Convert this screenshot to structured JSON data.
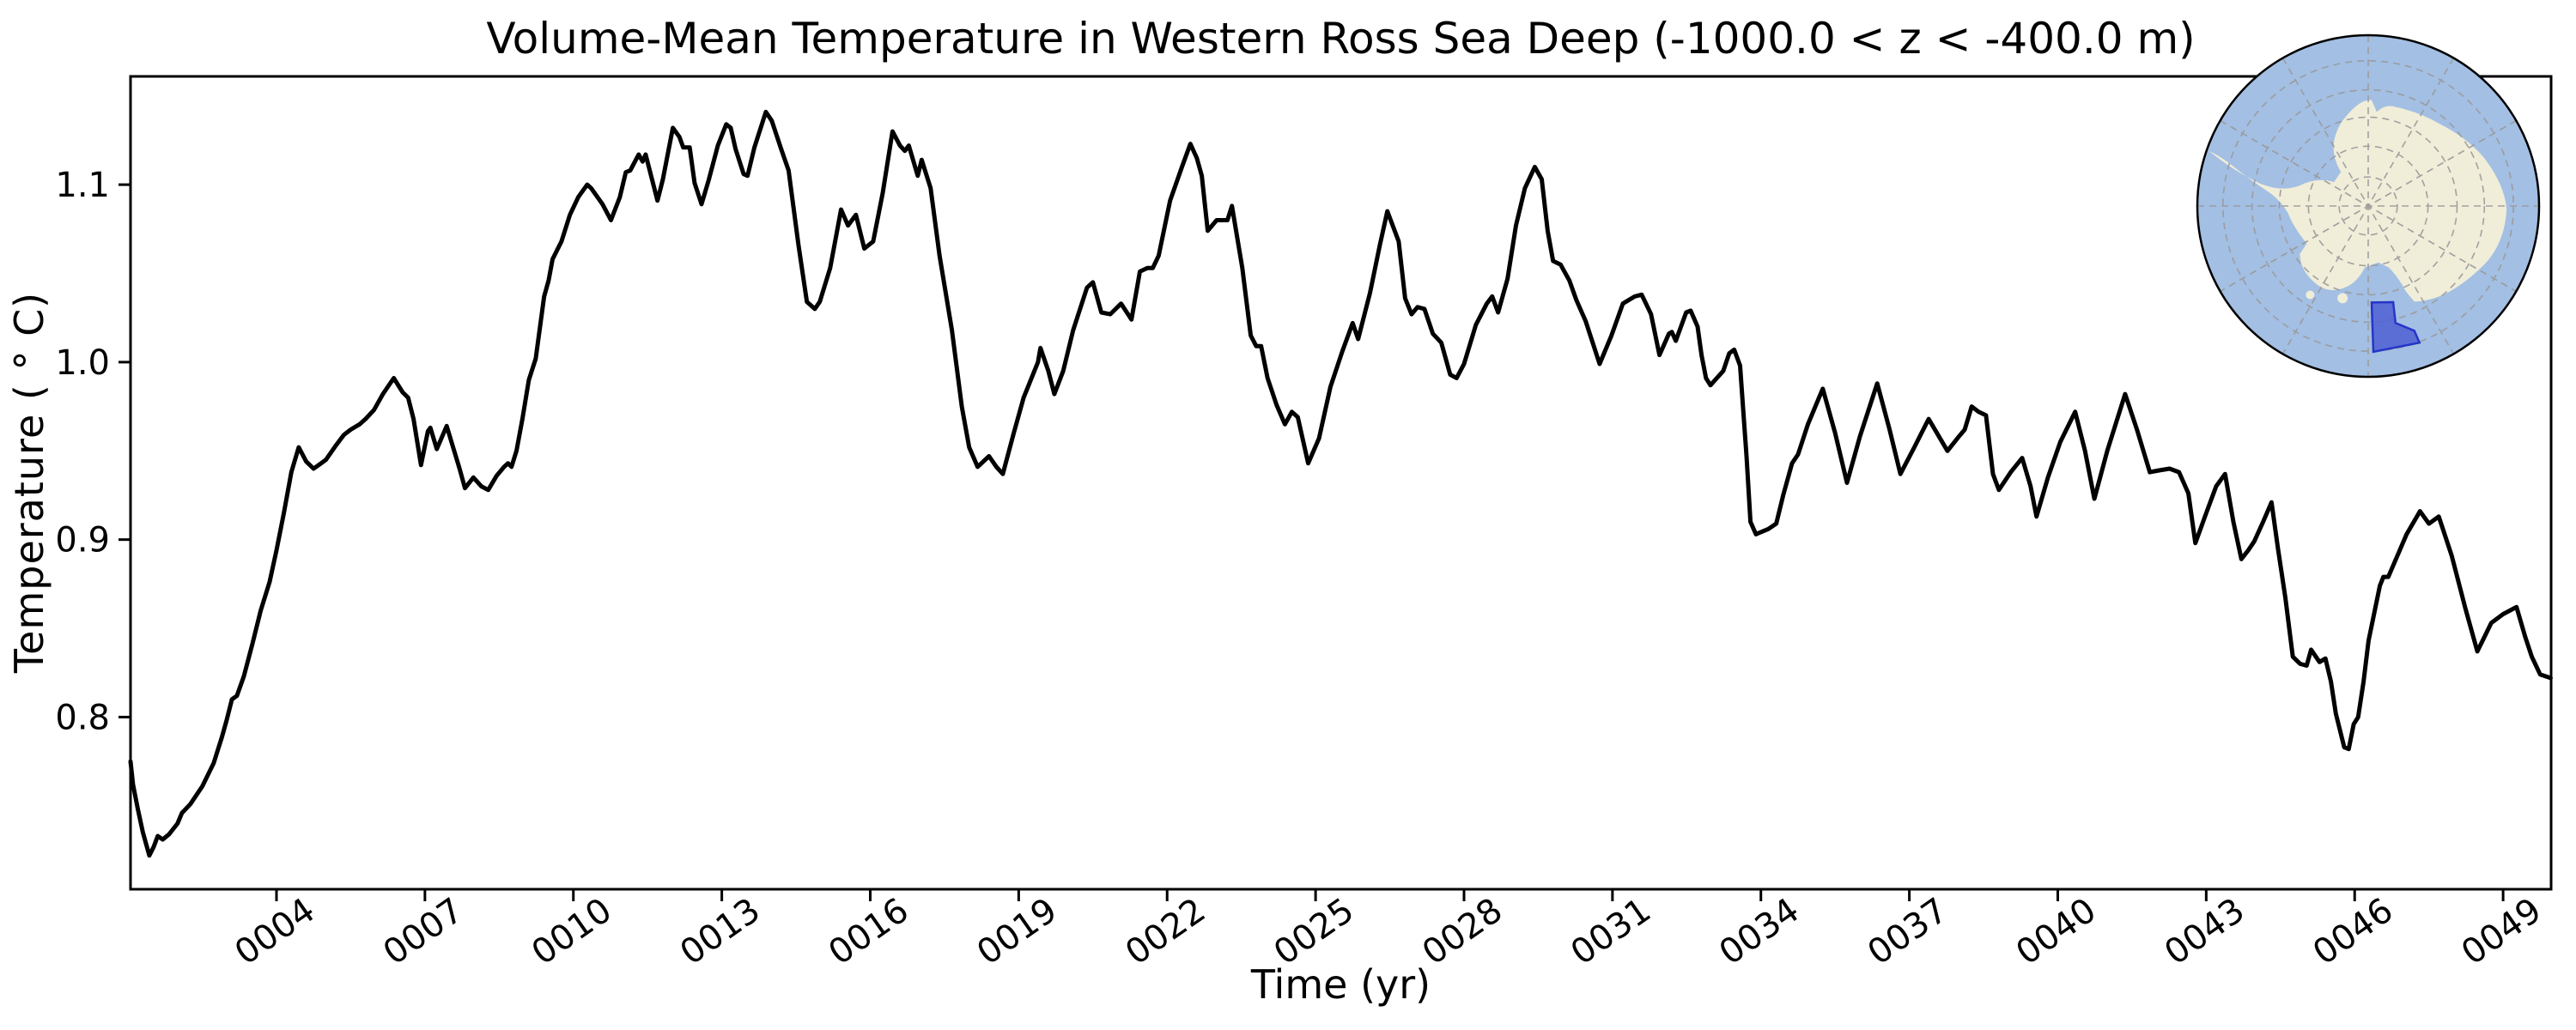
{
  "figure": {
    "background": "#ffffff",
    "text_color": "#000000"
  },
  "chart_data": {
    "type": "line",
    "title": "Volume-Mean Temperature in Western Ross Sea Deep (-1000.0 < z < -400.0 m)",
    "xlabel": "Time (yr)",
    "ylabel": "Temperature ( ° C)",
    "xlim": [
      1.05,
      49.97
    ],
    "ylim": [
      0.703,
      1.161
    ],
    "grid": false,
    "legend": "none",
    "x_ticks": [
      4,
      7,
      10,
      13,
      16,
      19,
      22,
      25,
      28,
      31,
      34,
      37,
      40,
      43,
      46,
      49
    ],
    "x_tick_labels": [
      "0004",
      "0007",
      "0010",
      "0013",
      "0016",
      "0019",
      "0022",
      "0025",
      "0028",
      "0031",
      "0034",
      "0037",
      "0040",
      "0043",
      "0046",
      "0049"
    ],
    "x_tick_rotation": 35,
    "y_ticks": [
      0.8,
      0.9,
      1.0,
      1.1
    ],
    "y_tick_labels": [
      "0.8",
      "0.9",
      "1.0",
      "1.1"
    ],
    "line_color": "#000000",
    "line_width": 5,
    "series": [
      {
        "name": "volume-mean temperature",
        "x": [
          1.05,
          1.1,
          1.2,
          1.3,
          1.43,
          1.52,
          1.6,
          1.7,
          1.83,
          2.0,
          2.09,
          2.26,
          2.5,
          2.73,
          2.9,
          2.99,
          3.1,
          3.2,
          3.34,
          3.51,
          3.68,
          3.86,
          4.0,
          4.15,
          4.3,
          4.45,
          4.6,
          4.75,
          4.9,
          5.0,
          5.2,
          5.36,
          5.5,
          5.68,
          5.8,
          5.97,
          6.15,
          6.37,
          6.55,
          6.66,
          6.77,
          6.92,
          7.06,
          7.11,
          7.24,
          7.44,
          7.58,
          7.7,
          7.81,
          7.98,
          8.14,
          8.28,
          8.45,
          8.6,
          8.68,
          8.75,
          8.85,
          8.97,
          9.1,
          9.24,
          9.41,
          9.5,
          9.58,
          9.67,
          9.76,
          9.93,
          10.1,
          10.28,
          10.36,
          10.59,
          10.76,
          10.94,
          11.06,
          11.15,
          11.32,
          11.4,
          11.46,
          11.58,
          11.7,
          11.81,
          12.01,
          12.14,
          12.22,
          12.35,
          12.45,
          12.59,
          12.74,
          12.92,
          13.09,
          13.18,
          13.28,
          13.44,
          13.52,
          13.66,
          13.89,
          14.01,
          14.2,
          14.35,
          14.55,
          14.72,
          14.8,
          14.88,
          14.98,
          15.19,
          15.41,
          15.55,
          15.71,
          15.88,
          16.06,
          16.25,
          16.45,
          16.6,
          16.7,
          16.78,
          16.96,
          17.04,
          17.22,
          17.4,
          17.65,
          17.85,
          18.0,
          18.17,
          18.4,
          18.55,
          18.68,
          18.9,
          19.1,
          19.39,
          19.44,
          19.6,
          19.72,
          19.9,
          20.1,
          20.38,
          20.5,
          20.67,
          20.85,
          21.07,
          21.28,
          21.45,
          21.6,
          21.71,
          21.83,
          22.06,
          22.3,
          22.47,
          22.6,
          22.7,
          22.82,
          23.0,
          23.22,
          23.31,
          23.52,
          23.69,
          23.8,
          23.9,
          24.03,
          24.21,
          24.38,
          24.52,
          24.64,
          24.85,
          25.07,
          25.3,
          25.54,
          25.75,
          25.86,
          26.1,
          26.3,
          26.45,
          26.68,
          26.81,
          26.94,
          27.06,
          27.2,
          27.37,
          27.54,
          27.72,
          27.85,
          28.0,
          28.24,
          28.46,
          28.57,
          28.69,
          28.88,
          29.05,
          29.23,
          29.43,
          29.57,
          29.69,
          29.8,
          29.95,
          30.13,
          30.27,
          30.46,
          30.74,
          30.98,
          31.21,
          31.45,
          31.59,
          31.78,
          31.95,
          32.14,
          32.2,
          32.28,
          32.49,
          32.58,
          32.72,
          32.8,
          32.89,
          32.98,
          33.11,
          33.24,
          33.36,
          33.46,
          33.58,
          33.64,
          33.71,
          33.79,
          33.9,
          33.98,
          34.15,
          34.31,
          34.45,
          34.63,
          34.75,
          34.95,
          35.25,
          35.5,
          35.74,
          36.0,
          36.35,
          36.6,
          36.82,
          37.1,
          37.39,
          37.6,
          37.77,
          38.0,
          38.12,
          38.26,
          38.4,
          38.55,
          38.69,
          38.81,
          39.05,
          39.28,
          39.45,
          39.57,
          39.8,
          40.05,
          40.35,
          40.55,
          40.74,
          41.0,
          41.36,
          41.6,
          41.86,
          42.05,
          42.26,
          42.45,
          42.64,
          42.78,
          43.0,
          43.2,
          43.38,
          43.55,
          43.71,
          43.85,
          43.97,
          44.15,
          44.32,
          44.45,
          44.6,
          44.75,
          44.9,
          45.03,
          45.12,
          45.29,
          45.41,
          45.52,
          45.62,
          45.79,
          45.88,
          45.98,
          46.07,
          46.18,
          46.28,
          46.51,
          46.58,
          46.68,
          46.85,
          47.05,
          47.32,
          47.5,
          47.7,
          47.96,
          48.24,
          48.48,
          48.62,
          48.76,
          49.0,
          49.27,
          49.45,
          49.58,
          49.75,
          49.96
        ],
        "y": [
          0.775,
          0.762,
          0.748,
          0.735,
          0.722,
          0.727,
          0.733,
          0.731,
          0.734,
          0.74,
          0.746,
          0.751,
          0.761,
          0.774,
          0.789,
          0.798,
          0.81,
          0.812,
          0.823,
          0.841,
          0.86,
          0.876,
          0.894,
          0.915,
          0.938,
          0.952,
          0.944,
          0.94,
          0.943,
          0.945,
          0.953,
          0.959,
          0.962,
          0.965,
          0.968,
          0.973,
          0.982,
          0.991,
          0.983,
          0.98,
          0.968,
          0.942,
          0.961,
          0.963,
          0.951,
          0.964,
          0.951,
          0.94,
          0.929,
          0.935,
          0.93,
          0.928,
          0.936,
          0.941,
          0.943,
          0.941,
          0.95,
          0.968,
          0.99,
          1.002,
          1.037,
          1.046,
          1.058,
          1.063,
          1.068,
          1.083,
          1.093,
          1.1,
          1.098,
          1.089,
          1.08,
          1.093,
          1.107,
          1.108,
          1.117,
          1.113,
          1.117,
          1.104,
          1.091,
          1.103,
          1.132,
          1.127,
          1.121,
          1.121,
          1.101,
          1.089,
          1.103,
          1.122,
          1.134,
          1.132,
          1.12,
          1.106,
          1.105,
          1.121,
          1.141,
          1.136,
          1.12,
          1.108,
          1.066,
          1.034,
          1.032,
          1.03,
          1.034,
          1.053,
          1.086,
          1.077,
          1.083,
          1.064,
          1.068,
          1.095,
          1.13,
          1.122,
          1.119,
          1.122,
          1.105,
          1.114,
          1.098,
          1.06,
          1.018,
          0.975,
          0.952,
          0.941,
          0.947,
          0.941,
          0.937,
          0.96,
          0.98,
          1.0,
          1.008,
          0.995,
          0.982,
          0.995,
          1.018,
          1.042,
          1.045,
          1.028,
          1.027,
          1.033,
          1.024,
          1.051,
          1.053,
          1.053,
          1.06,
          1.091,
          1.11,
          1.123,
          1.115,
          1.105,
          1.074,
          1.08,
          1.08,
          1.088,
          1.053,
          1.015,
          1.009,
          1.009,
          0.991,
          0.976,
          0.965,
          0.972,
          0.969,
          0.943,
          0.957,
          0.986,
          1.006,
          1.022,
          1.013,
          1.039,
          1.066,
          1.085,
          1.068,
          1.036,
          1.027,
          1.031,
          1.03,
          1.016,
          1.011,
          0.993,
          0.991,
          0.999,
          1.021,
          1.033,
          1.037,
          1.028,
          1.047,
          1.077,
          1.098,
          1.11,
          1.103,
          1.074,
          1.057,
          1.055,
          1.046,
          1.035,
          1.023,
          0.999,
          1.015,
          1.033,
          1.037,
          1.038,
          1.027,
          1.004,
          1.016,
          1.017,
          1.012,
          1.028,
          1.029,
          1.02,
          1.004,
          0.991,
          0.987,
          0.991,
          0.995,
          1.005,
          1.007,
          0.998,
          0.974,
          0.947,
          0.91,
          0.903,
          0.904,
          0.906,
          0.909,
          0.925,
          0.943,
          0.948,
          0.965,
          0.985,
          0.96,
          0.932,
          0.958,
          0.988,
          0.962,
          0.937,
          0.952,
          0.968,
          0.958,
          0.95,
          0.958,
          0.962,
          0.975,
          0.972,
          0.97,
          0.937,
          0.928,
          0.938,
          0.946,
          0.93,
          0.913,
          0.935,
          0.955,
          0.972,
          0.95,
          0.923,
          0.95,
          0.982,
          0.962,
          0.938,
          0.939,
          0.94,
          0.938,
          0.926,
          0.898,
          0.915,
          0.93,
          0.937,
          0.91,
          0.889,
          0.894,
          0.899,
          0.91,
          0.921,
          0.895,
          0.867,
          0.834,
          0.83,
          0.829,
          0.838,
          0.831,
          0.833,
          0.82,
          0.802,
          0.783,
          0.782,
          0.796,
          0.8,
          0.82,
          0.843,
          0.874,
          0.879,
          0.879,
          0.89,
          0.903,
          0.916,
          0.909,
          0.913,
          0.891,
          0.861,
          0.837,
          0.845,
          0.853,
          0.858,
          0.862,
          0.845,
          0.834,
          0.824,
          0.822
        ]
      }
    ]
  },
  "inset_map": {
    "description": "south-polar globe locator with highlighted region",
    "ocean_color": "#a3bfe3",
    "land_color": "#f0edd9",
    "region_fill": "#4d5fd4",
    "region_border": "#2535c8",
    "graticule_color": "#999999",
    "rim_color": "#000000"
  }
}
